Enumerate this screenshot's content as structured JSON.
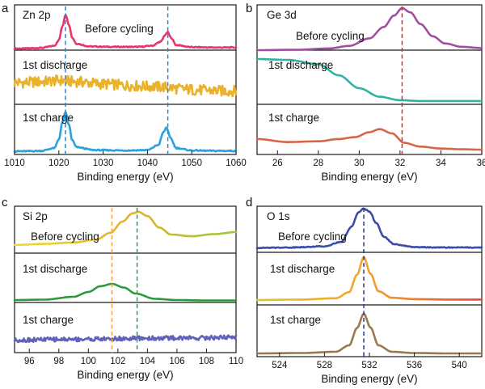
{
  "chart_data": [
    {
      "panel": "a",
      "type": "line",
      "element_label": "Zn 2p",
      "xlabel": "Binding energy (eV)",
      "ylabel": "",
      "xlim": [
        1010,
        1060
      ],
      "xticks": [
        1010,
        1020,
        1030,
        1040,
        1050,
        1060
      ],
      "grid": false,
      "reference_lines": [
        {
          "x": 1021.5,
          "color": "#2f86c7"
        },
        {
          "x": 1044.6,
          "color": "#2f86c7"
        }
      ],
      "traces": [
        {
          "label": "Before cycling",
          "color": "#e8366b",
          "noise": 0.03,
          "x": [
            1012,
            1016,
            1019,
            1020,
            1020.8,
            1021.5,
            1022.3,
            1023,
            1024,
            1027,
            1032,
            1038,
            1041,
            1043,
            1044,
            1044.6,
            1045.3,
            1046.5,
            1050,
            1055,
            1058
          ],
          "y": [
            0.0,
            0.02,
            0.08,
            0.25,
            0.65,
            1.0,
            0.7,
            0.32,
            0.14,
            0.06,
            0.05,
            0.05,
            0.08,
            0.2,
            0.4,
            0.48,
            0.32,
            0.1,
            0.04,
            0.03,
            0.03
          ]
        },
        {
          "label": "1st discharge",
          "color": "#eab22b",
          "noise": 0.28,
          "x": [
            1012,
            1016,
            1020,
            1024,
            1030,
            1036,
            1040,
            1044,
            1048,
            1052,
            1058
          ],
          "y": [
            0.5,
            0.52,
            0.55,
            0.52,
            0.46,
            0.42,
            0.4,
            0.38,
            0.33,
            0.3,
            0.28
          ]
        },
        {
          "label": "1st charge",
          "color": "#29a3e0",
          "noise": 0.03,
          "x": [
            1012,
            1016,
            1019,
            1020,
            1020.8,
            1021.5,
            1022.3,
            1023,
            1024,
            1028,
            1035,
            1040,
            1042.5,
            1043.6,
            1044.3,
            1045.2,
            1046.5,
            1050,
            1055,
            1058
          ],
          "y": [
            0.02,
            0.03,
            0.1,
            0.32,
            0.75,
            1.0,
            0.68,
            0.3,
            0.12,
            0.05,
            0.04,
            0.05,
            0.18,
            0.5,
            0.62,
            0.35,
            0.1,
            0.04,
            0.03,
            0.03
          ]
        }
      ]
    },
    {
      "panel": "b",
      "type": "line",
      "element_label": "Ge 3d",
      "xlabel": "Binding energy (eV)",
      "ylabel": "",
      "xlim": [
        25,
        36
      ],
      "xticks": [
        26,
        28,
        30,
        32,
        34,
        36
      ],
      "grid": false,
      "reference_lines": [
        {
          "x": 32.1,
          "color": "#d62b2b"
        }
      ],
      "traces": [
        {
          "label": "Before cycling",
          "color": "#a04fa0",
          "noise": 0.0,
          "x": [
            25,
            27,
            28.5,
            29.5,
            30.5,
            31.2,
            31.7,
            32.1,
            32.5,
            33,
            33.6,
            34.2,
            35,
            36
          ],
          "y": [
            0.0,
            0.01,
            0.04,
            0.1,
            0.28,
            0.55,
            0.82,
            1.0,
            0.9,
            0.62,
            0.33,
            0.16,
            0.08,
            0.05
          ]
        },
        {
          "label": "1st discharge",
          "color": "#30b2a4",
          "noise": 0.0,
          "x": [
            25,
            26.5,
            28,
            29,
            30,
            31,
            32,
            33,
            34,
            35,
            36
          ],
          "y": [
            1.0,
            0.98,
            0.88,
            0.62,
            0.32,
            0.12,
            0.04,
            0.02,
            0.02,
            0.02,
            0.02
          ]
        },
        {
          "label": "1st charge",
          "color": "#d96548",
          "noise": 0.0,
          "x": [
            25,
            26.5,
            28,
            29,
            29.8,
            30.5,
            31,
            31.6,
            32.2,
            33,
            34,
            35,
            36
          ],
          "y": [
            0.3,
            0.22,
            0.24,
            0.3,
            0.35,
            0.48,
            0.56,
            0.45,
            0.2,
            0.1,
            0.05,
            0.03,
            0.02
          ]
        }
      ]
    },
    {
      "panel": "c",
      "type": "line",
      "element_label": "Si 2p",
      "xlabel": "Binding energy (eV)",
      "ylabel": "",
      "xlim": [
        95,
        110
      ],
      "xticks": [
        96,
        98,
        100,
        102,
        104,
        106,
        108,
        110
      ],
      "grid": false,
      "reference_lines": [
        {
          "x": 101.6,
          "color": "#f5a33a"
        },
        {
          "x": 103.3,
          "color": "#28a14f"
        }
      ],
      "traces": [
        {
          "label": "Before cycling",
          "color": "#d0c43a",
          "gradient": [
            "#ecdd2c",
            "#e4b32a",
            "#9ac83a"
          ],
          "noise": 0.0,
          "x": [
            95,
            97,
            99,
            100.5,
            101.5,
            102.3,
            103,
            103.4,
            104,
            104.8,
            105.6,
            107,
            108.5,
            110
          ],
          "y": [
            0.05,
            0.08,
            0.12,
            0.2,
            0.4,
            0.72,
            0.96,
            1.0,
            0.88,
            0.55,
            0.35,
            0.3,
            0.36,
            0.42
          ]
        },
        {
          "label": "1st discharge",
          "color": "#2f9a3c",
          "noise": 0.0,
          "x": [
            95,
            97,
            99,
            100,
            100.8,
            101.6,
            102.4,
            103.2,
            104.5,
            106,
            108,
            110
          ],
          "y": [
            0.02,
            0.03,
            0.1,
            0.22,
            0.36,
            0.42,
            0.33,
            0.18,
            0.05,
            0.02,
            0.01,
            0.01
          ]
        },
        {
          "label": "1st charge",
          "color": "#5f62b8",
          "noise": 0.12,
          "x": [
            95,
            98,
            101,
            104,
            107,
            110
          ],
          "y": [
            0.3,
            0.32,
            0.33,
            0.35,
            0.36,
            0.38
          ]
        }
      ]
    },
    {
      "panel": "d",
      "type": "line",
      "element_label": "O 1s",
      "xlabel": "Binding energy (eV)",
      "ylabel": "",
      "xlim": [
        522,
        542
      ],
      "xticks": [
        524,
        528,
        532,
        536,
        540
      ],
      "grid": false,
      "reference_lines": [
        {
          "x": 531.5,
          "color": "#2d3a8c"
        }
      ],
      "traces": [
        {
          "label": "Before cycling",
          "color": "#3b4ea6",
          "noise": 0.02,
          "x": [
            522,
            525,
            528,
            529.5,
            530.4,
            531,
            531.5,
            532,
            532.6,
            533.3,
            534.2,
            536,
            538,
            542
          ],
          "y": [
            0.03,
            0.04,
            0.07,
            0.18,
            0.55,
            0.9,
            1.0,
            0.93,
            0.65,
            0.3,
            0.12,
            0.05,
            0.04,
            0.04
          ]
        },
        {
          "label": "1st discharge",
          "color": "#f2a12a",
          "gradient": [
            "#e8c326",
            "#f2a12a",
            "#e04a3a"
          ],
          "noise": 0.0,
          "x": [
            522,
            526,
            529,
            530.2,
            530.9,
            531.5,
            532.1,
            532.8,
            534,
            536,
            539,
            542
          ],
          "y": [
            0.02,
            0.03,
            0.06,
            0.2,
            0.6,
            1.0,
            0.62,
            0.22,
            0.07,
            0.04,
            0.03,
            0.03
          ]
        },
        {
          "label": "1st charge",
          "color": "#9a7a4a",
          "noise": 0.0,
          "x": [
            522,
            526,
            529,
            530.2,
            530.9,
            531.5,
            532.1,
            532.8,
            534,
            536,
            539,
            542
          ],
          "y": [
            0.02,
            0.03,
            0.06,
            0.22,
            0.65,
            1.0,
            0.66,
            0.22,
            0.06,
            0.03,
            0.02,
            0.02
          ]
        }
      ]
    }
  ]
}
